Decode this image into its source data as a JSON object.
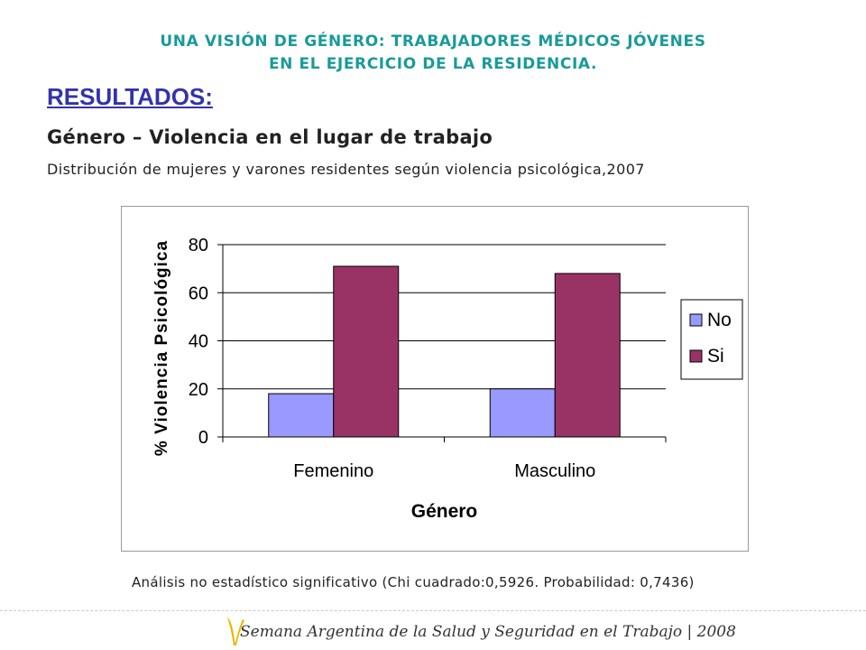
{
  "header": {
    "line1": "UNA VISIÓN DE GÉNERO: TRABAJADORES MÉDICOS JÓVENES",
    "line2": "EN EL EJERCICIO DE LA RESIDENCIA."
  },
  "section_title": "RESULTADOS:",
  "subtitle": "Género – Violencia en el lugar de trabajo",
  "description": "Distribución de mujeres y varones residentes según violencia psicológica,2007",
  "footnote": "Análisis no estadístico significativo (Chi cuadrado:0,5926. Probabilidad: 0,7436)",
  "footer": {
    "text": "Semana Argentina de la Salud y Seguridad en el Trabajo | 2008",
    "logo_icon": "v-letter-logo-icon",
    "logo_color": "#e8b800"
  },
  "chart_data": {
    "type": "bar",
    "categories": [
      "Femenino",
      "Masculino"
    ],
    "series": [
      {
        "name": "No",
        "values": [
          18,
          20
        ],
        "color": "#9999ff"
      },
      {
        "name": "Si",
        "values": [
          71,
          68
        ],
        "color": "#993366"
      }
    ],
    "xlabel": "Género",
    "ylabel": "% Violencia Psicológica",
    "ylim": [
      0,
      80
    ],
    "yticks": [
      0,
      20,
      40,
      60,
      80
    ],
    "grid": true,
    "legend_position": "right"
  }
}
